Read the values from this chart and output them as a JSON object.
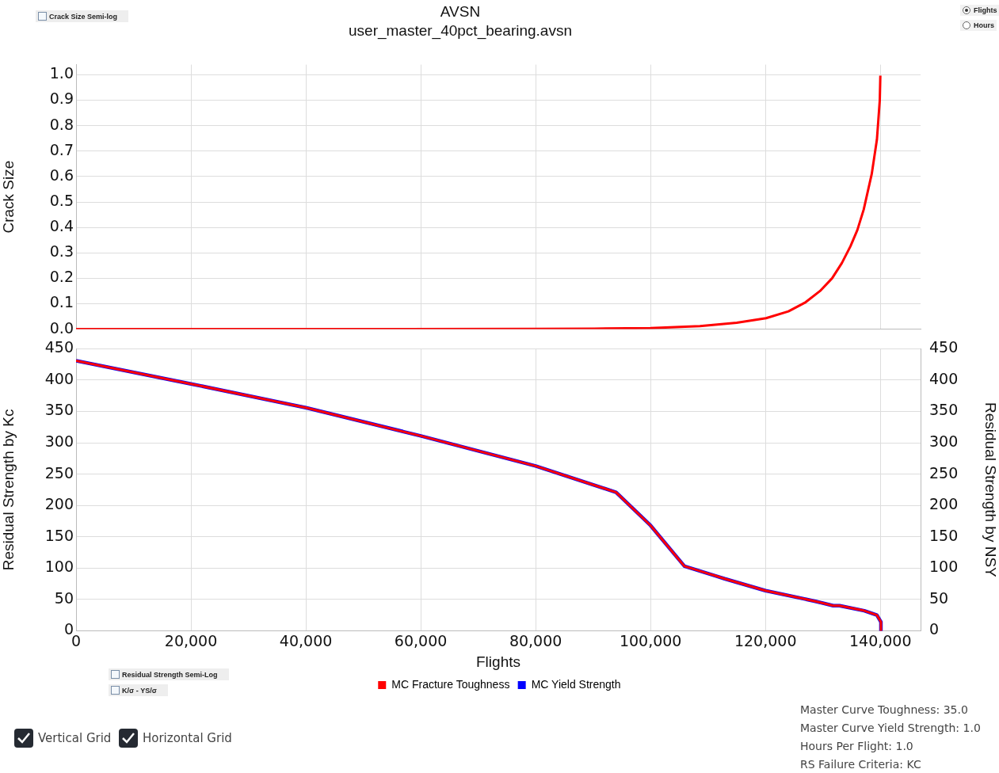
{
  "chart_data": [
    {
      "type": "line",
      "title": "AVSN",
      "subtitle": "user_master_40pct_bearing.avsn",
      "ylabel": "Crack Size",
      "x": [
        0,
        40000,
        80000,
        90200,
        100000,
        108600,
        115000,
        120100,
        124000,
        127000,
        129500,
        131600,
        133300,
        134800,
        136000,
        137100,
        138500,
        139400,
        139900,
        140000
      ],
      "series": [
        {
          "color": "#ff0000",
          "values": [
            0,
            0,
            0.001,
            0.002,
            0.004,
            0.012,
            0.025,
            0.043,
            0.07,
            0.106,
            0.15,
            0.2,
            0.26,
            0.326,
            0.39,
            0.47,
            0.61,
            0.745,
            0.9,
            0.997
          ]
        }
      ],
      "xlim": [
        0,
        147000
      ],
      "xticks": [
        0,
        20000,
        40000,
        60000,
        80000,
        100000,
        120000,
        140000
      ],
      "ylim": [
        0,
        1.04
      ],
      "yticks": [
        {
          "value": 0,
          "label": "0.0"
        },
        0.1,
        0.2,
        0.3,
        0.4,
        0.5,
        0.6,
        0.7,
        0.8,
        0.9,
        {
          "value": 1,
          "label": "1.0"
        }
      ],
      "tick_labels": "y",
      "grid": true,
      "legend": false,
      "marker": "none",
      "line_style": "solid",
      "annotations": [
        "Crack Size Semi-log",
        "Flights",
        "Hours"
      ]
    },
    {
      "type": "line",
      "xlabel": "Flights",
      "ylabel": "Residual Strength by Kc",
      "y2label": "Residual Strength by NSY",
      "x": [
        0,
        20000,
        40000,
        60000,
        80000,
        94000,
        100000,
        105900,
        110100,
        111200,
        112900,
        120000,
        128700,
        131800,
        132900,
        137200,
        139400,
        140100,
        140100
      ],
      "series": [
        {
          "name": "MC Fracture Toughness",
          "color": "#ff0000",
          "values": [
            431,
            394,
            356,
            311,
            263,
            221,
            168,
            103,
            91,
            88,
            83,
            64,
            47,
            40,
            40,
            32,
            25,
            14,
            0
          ]
        },
        {
          "name": "MC Yield Strength",
          "color": "#0000ff",
          "values": [
            431,
            394,
            356,
            311,
            263,
            221,
            168,
            103,
            91,
            88,
            83,
            64,
            47,
            40,
            40,
            32,
            25,
            14,
            0
          ]
        }
      ],
      "xlim": [
        0,
        147000
      ],
      "xticks": [
        0,
        {
          "value": 20000,
          "label": "20,000"
        },
        {
          "value": 40000,
          "label": "40,000"
        },
        {
          "value": 60000,
          "label": "60,000"
        },
        {
          "value": 80000,
          "label": "80,000"
        },
        {
          "value": 100000,
          "label": "100,000"
        },
        {
          "value": 120000,
          "label": "120,000"
        },
        {
          "value": 140000,
          "label": "140,000"
        }
      ],
      "ylim": [
        0,
        450
      ],
      "yticks": [
        0,
        50,
        100,
        150,
        200,
        250,
        300,
        350,
        400,
        450
      ],
      "y2lim": [
        0,
        450
      ],
      "y2ticks": [
        0,
        50,
        100,
        150,
        200,
        250,
        300,
        350,
        400,
        450
      ],
      "grid": true,
      "legend": "bottom",
      "marker": "none",
      "line_style": "solid",
      "annotations": [
        "Residual Strength Semi-Log",
        "K/σ - YS/σ",
        "Vertical Grid",
        "Horizontal Grid",
        "Master Curve Toughness: 35.0",
        "Master Curve Yield Strength: 1.0",
        "Hours Per Flight: 1.0",
        "RS Failure Criteria: KC"
      ]
    }
  ]
}
